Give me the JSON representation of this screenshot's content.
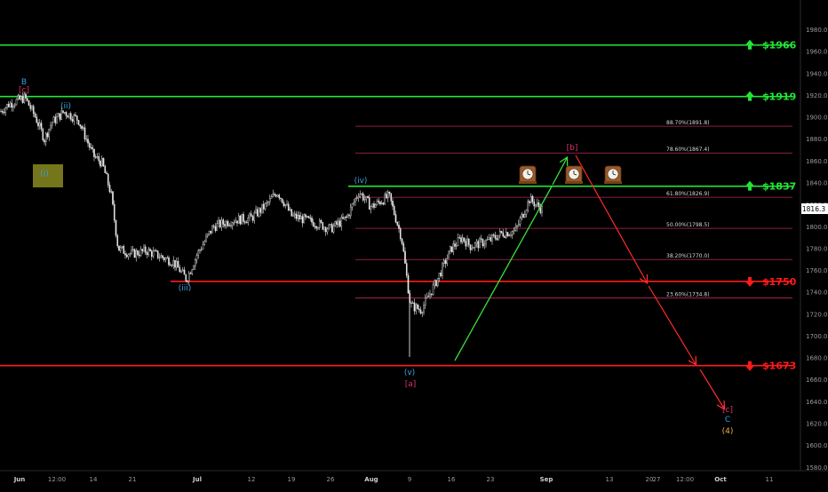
{
  "chart_data": {
    "type": "candlestick",
    "currency_label": "USD",
    "price_axis": {
      "ticks": [
        "1980.0",
        "1960.0",
        "1940.0",
        "1920.0",
        "1900.0",
        "1880.0",
        "1860.0",
        "1840.0",
        "1820.0",
        "1800.0",
        "1780.0",
        "1760.0",
        "1740.0",
        "1720.0",
        "1700.0",
        "1680.0",
        "1660.0",
        "1640.0",
        "1620.0",
        "1600.0",
        "1580.0"
      ],
      "ylim": [
        1574,
        1991
      ],
      "current_price": "1816.3"
    },
    "time_axis": {
      "labels": [
        "Jun",
        "12:00",
        "14",
        "21",
        "Jul",
        "12",
        "19",
        "26",
        "Aug",
        "9",
        "16",
        "23",
        "Sep",
        "13",
        "20",
        "27",
        "12:00",
        "Oct",
        "11"
      ],
      "bold": [
        "Jun",
        "Jul",
        "Aug",
        "Sep",
        "Oct"
      ]
    },
    "levels": [
      {
        "price": 1966,
        "label": "$1966",
        "color": "#22e636",
        "direction": "up"
      },
      {
        "price": 1919,
        "label": "$1919",
        "color": "#22e636",
        "direction": "up"
      },
      {
        "price": 1837,
        "label": "$1837",
        "color": "#22e636",
        "direction": "up"
      },
      {
        "price": 1750,
        "label": "$1750",
        "color": "#ff1a1a",
        "direction": "down"
      },
      {
        "price": 1673,
        "label": "$1673",
        "color": "#ff1a1a",
        "direction": "down"
      }
    ],
    "fib_levels": [
      {
        "price": 1891.8,
        "label": "88.70%(1891.8)"
      },
      {
        "price": 1867.4,
        "label": "78.60%(1867.4)"
      },
      {
        "price": 1826.9,
        "label": "61.80%(1826.9)"
      },
      {
        "price": 1798.5,
        "label": "50.00%(1798.5)"
      },
      {
        "price": 1770.0,
        "label": "38.20%(1770.0)"
      },
      {
        "price": 1734.8,
        "label": "23.60%(1734.8)"
      }
    ],
    "wave_labels": [
      {
        "text": "B",
        "color": "#3aa0d8"
      },
      {
        "text": "[c]",
        "color": "#e0306a"
      },
      {
        "text": "(i)",
        "color": "#3aa0d8"
      },
      {
        "text": "(ii)",
        "color": "#3aa0d8"
      },
      {
        "text": "(iii)",
        "color": "#3aa0d8"
      },
      {
        "text": "(iv)",
        "color": "#3aa0d8"
      },
      {
        "text": "(v)",
        "color": "#3aa0d8"
      },
      {
        "text": "[a]",
        "color": "#e0306a"
      },
      {
        "text": "[b]",
        "color": "#e0306a"
      },
      {
        "text": "[c]",
        "color": "#e0306a"
      },
      {
        "text": "C",
        "color": "#3aa0d8"
      },
      {
        "text": "(4)",
        "color": "#e8b04a"
      }
    ],
    "clock_icons": 3,
    "series": [
      {
        "x": "Jun",
        "y": 1905
      },
      {
        "x": "Jun 3",
        "y": 1912
      },
      {
        "x": "Jun 4",
        "y": 1918
      },
      {
        "x": "Jun 7",
        "y": 1900
      },
      {
        "x": "Jun 8",
        "y": 1880
      },
      {
        "x": "Jun 9",
        "y": 1895
      },
      {
        "x": "Jun 10",
        "y": 1905
      },
      {
        "x": "Jun 11",
        "y": 1898
      },
      {
        "x": "14",
        "y": 1865
      },
      {
        "x": "Jun 16",
        "y": 1858
      },
      {
        "x": "Jun 17",
        "y": 1830
      },
      {
        "x": "Jun 18",
        "y": 1780
      },
      {
        "x": "21",
        "y": 1775
      },
      {
        "x": "Jun 24",
        "y": 1778
      },
      {
        "x": "Jun 28",
        "y": 1768
      },
      {
        "x": "Jun 29",
        "y": 1752
      },
      {
        "x": "Jul",
        "y": 1775
      },
      {
        "x": "Jul 6",
        "y": 1800
      },
      {
        "x": "Jul 9",
        "y": 1806
      },
      {
        "x": "12",
        "y": 1808
      },
      {
        "x": "Jul 14",
        "y": 1820
      },
      {
        "x": "Jul 15",
        "y": 1832
      },
      {
        "x": "Jul 16",
        "y": 1822
      },
      {
        "x": "19",
        "y": 1810
      },
      {
        "x": "Jul 21",
        "y": 1806
      },
      {
        "x": "Jul 23",
        "y": 1802
      },
      {
        "x": "26",
        "y": 1798
      },
      {
        "x": "Jul 28",
        "y": 1808
      },
      {
        "x": "Jul 30",
        "y": 1832
      },
      {
        "x": "Aug",
        "y": 1818
      },
      {
        "x": "Aug 4",
        "y": 1828
      },
      {
        "x": "Aug 6",
        "y": 1790
      },
      {
        "x": "9",
        "y": 1728
      },
      {
        "x": "Aug 11",
        "y": 1724
      },
      {
        "x": "Aug 13",
        "y": 1748
      },
      {
        "x": "16",
        "y": 1780
      },
      {
        "x": "Aug 18",
        "y": 1790
      },
      {
        "x": "Aug 20",
        "y": 1782
      },
      {
        "x": "23",
        "y": 1788
      },
      {
        "x": "Aug 25",
        "y": 1794
      },
      {
        "x": "Aug 27",
        "y": 1796
      },
      {
        "x": "Aug 28",
        "y": 1825
      },
      {
        "x": "Aug 30",
        "y": 1816
      }
    ]
  }
}
